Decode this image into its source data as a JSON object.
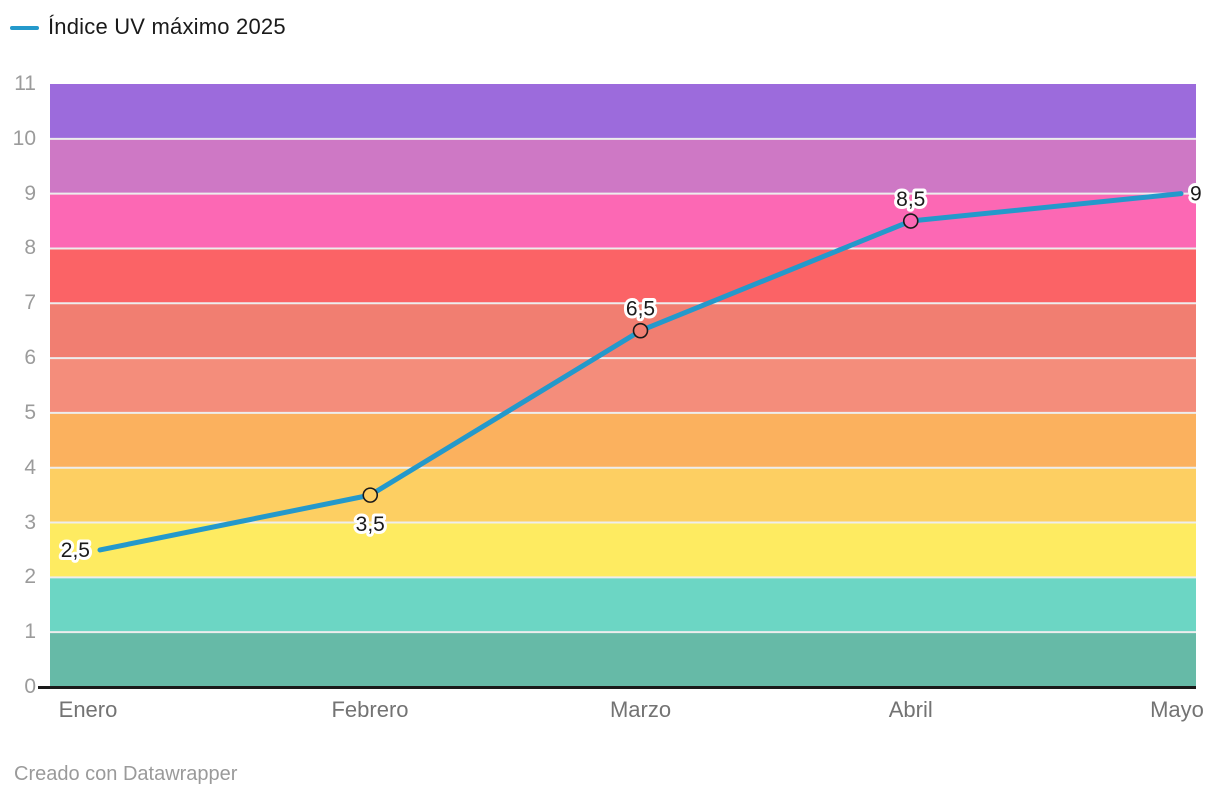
{
  "legend": {
    "label": "Índice UV máximo 2025",
    "swatch_color": "#2499CB"
  },
  "footer": {
    "credit": "Creado con Datawrapper"
  },
  "chart_data": {
    "type": "line",
    "title": "Índice UV máximo 2025",
    "categories": [
      "Enero",
      "Febrero",
      "Marzo",
      "Abril",
      "Mayo"
    ],
    "series": [
      {
        "name": "Índice UV máximo 2025",
        "values": [
          2.5,
          3.5,
          6.5,
          8.5,
          9
        ]
      }
    ],
    "point_labels": [
      "2,5",
      "3,5",
      "6,5",
      "8,5",
      "9"
    ],
    "point_label_positions": [
      "left",
      "below",
      "above",
      "above",
      "right"
    ],
    "point_markers": [
      false,
      true,
      true,
      true,
      false
    ],
    "xlabel": "",
    "ylabel": "",
    "ylim": [
      0,
      11
    ],
    "yticks": [
      "0",
      "1",
      "2",
      "3",
      "4",
      "5",
      "6",
      "7",
      "8",
      "9",
      "10",
      "11"
    ],
    "grid": true,
    "legend_position": "top-left",
    "line_color": "#2499CB",
    "line_width": 5,
    "baseline_color": "#1a1a1a",
    "gridline_color": "#EDEDED",
    "uv_bands": [
      {
        "from": 0,
        "to": 1,
        "color": "#66BAA7"
      },
      {
        "from": 1,
        "to": 2,
        "color": "#6CD6C4"
      },
      {
        "from": 2,
        "to": 3,
        "color": "#FEEB61"
      },
      {
        "from": 3,
        "to": 4,
        "color": "#FDCF62"
      },
      {
        "from": 4,
        "to": 5,
        "color": "#FBB15E"
      },
      {
        "from": 5,
        "to": 6,
        "color": "#F48D7B"
      },
      {
        "from": 6,
        "to": 7,
        "color": "#F17E71"
      },
      {
        "from": 7,
        "to": 8,
        "color": "#FB6366"
      },
      {
        "from": 8,
        "to": 9,
        "color": "#FC68B4"
      },
      {
        "from": 9,
        "to": 10,
        "color": "#CE78C5"
      },
      {
        "from": 10,
        "to": 11,
        "color": "#9C6BDC"
      }
    ],
    "text_colors": {
      "ytick": "#9B9B9B",
      "xtick": "#737373",
      "point_label": "#1a1a1a",
      "legend": "#1a1a1a",
      "credit": "#9A9A9A"
    }
  }
}
